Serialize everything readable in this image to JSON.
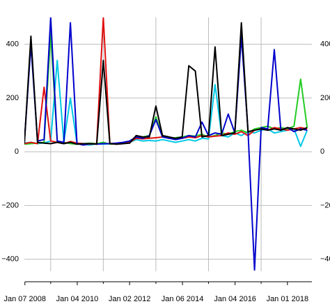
{
  "chart_data": {
    "type": "line",
    "x": [
      2008,
      2008.25,
      2008.5,
      2008.75,
      2009,
      2009.25,
      2009.5,
      2009.75,
      2010,
      2010.25,
      2010.5,
      2010.75,
      2011,
      2011.25,
      2011.5,
      2011.75,
      2012,
      2012.25,
      2012.5,
      2012.75,
      2013,
      2013.25,
      2013.5,
      2013.75,
      2014,
      2014.25,
      2014.5,
      2014.75,
      2015,
      2015.25,
      2015.5,
      2015.75,
      2016,
      2016.25,
      2016.5,
      2016.75,
      2017,
      2017.25,
      2017.5,
      2017.75,
      2018,
      2018.25,
      2018.5,
      2018.75
    ],
    "series": [
      {
        "color": "#00c8e6",
        "values": [
          32,
          35,
          30,
          33,
          40,
          340,
          35,
          200,
          30,
          28,
          25,
          30,
          28,
          30,
          30,
          32,
          35,
          45,
          40,
          42,
          40,
          45,
          40,
          35,
          40,
          45,
          40,
          50,
          48,
          250,
          60,
          55,
          70,
          60,
          75,
          70,
          80,
          85,
          70,
          75,
          80,
          85,
          20,
          80
        ]
      },
      {
        "color": "#22cc22",
        "values": [
          28,
          30,
          32,
          35,
          440,
          40,
          35,
          30,
          28,
          30,
          32,
          30,
          35,
          28,
          30,
          32,
          35,
          50,
          55,
          60,
          130,
          55,
          50,
          52,
          55,
          60,
          58,
          65,
          55,
          60,
          70,
          65,
          75,
          80,
          70,
          85,
          90,
          95,
          85,
          90,
          85,
          95,
          270,
          90
        ]
      },
      {
        "color": "#e01010",
        "values": [
          30,
          35,
          30,
          240,
          40,
          35,
          30,
          38,
          32,
          30,
          28,
          30,
          500,
          30,
          28,
          30,
          35,
          50,
          48,
          50,
          52,
          55,
          50,
          48,
          50,
          55,
          52,
          60,
          55,
          58,
          60,
          70,
          65,
          75,
          60,
          80,
          85,
          80,
          90,
          85,
          80,
          85,
          90,
          85
        ]
      },
      {
        "color": "#0000cc",
        "values": [
          35,
          400,
          40,
          45,
          500,
          40,
          35,
          480,
          30,
          25,
          30,
          28,
          30,
          30,
          32,
          35,
          40,
          55,
          50,
          60,
          120,
          55,
          50,
          45,
          50,
          60,
          55,
          110,
          60,
          70,
          65,
          140,
          70,
          430,
          80,
          -440,
          90,
          85,
          380,
          80,
          90,
          75,
          85,
          80
        ]
      },
      {
        "color": "#000000",
        "values": [
          30,
          430,
          35,
          32,
          30,
          35,
          30,
          35,
          28,
          30,
          30,
          28,
          340,
          30,
          28,
          30,
          32,
          60,
          55,
          55,
          170,
          60,
          55,
          50,
          55,
          320,
          300,
          55,
          60,
          390,
          60,
          65,
          70,
          480,
          75,
          80,
          85,
          80,
          85,
          80,
          90,
          85,
          80,
          90
        ]
      }
    ],
    "xlim": [
      2008,
      2018.93
    ],
    "xticks": [
      {
        "value": 2008.02,
        "label": "Jan 07 2008"
      },
      {
        "value": 2010.01,
        "label": "Jan 04 2010"
      },
      {
        "value": 2012.0,
        "label": "Jan 02 2012"
      },
      {
        "value": 2014.01,
        "label": "Jan 06 2014"
      },
      {
        "value": 2016.01,
        "label": "Jan 04 2016"
      },
      {
        "value": 2018.0,
        "label": "Jan 01 2018"
      }
    ],
    "xgrid": [
      2009,
      2011,
      2013,
      2015,
      2017
    ],
    "ylim": [
      -445,
      500
    ],
    "yticks": [
      400,
      200,
      0,
      {
        "value": -200,
        "label": "−200"
      },
      {
        "value": -400,
        "label": "−400"
      }
    ],
    "grid": true
  }
}
